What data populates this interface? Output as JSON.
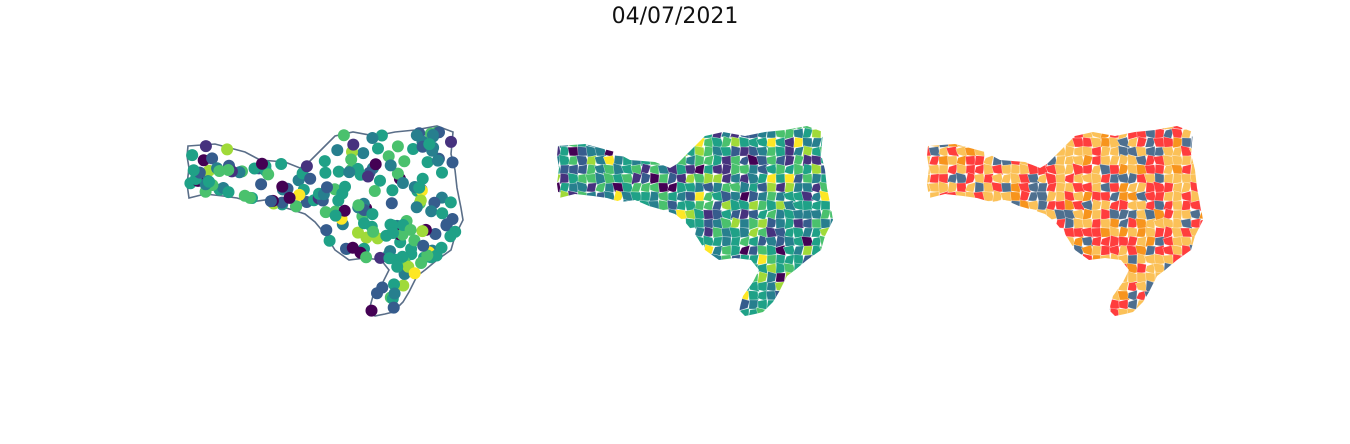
{
  "figure": {
    "title": "04/07/2021"
  },
  "panels": [
    {
      "id": "points",
      "kind": "point-map",
      "colormap": "viridis"
    },
    {
      "id": "choropleth",
      "kind": "choropleth",
      "colormap": "viridis"
    },
    {
      "id": "categories",
      "kind": "categorical-choropleth",
      "category_colors": [
        "#fbc158",
        "#ff3d3d",
        "#4e6f8f",
        "#f7941d"
      ]
    }
  ],
  "palette": {
    "viridis": [
      "#440154",
      "#46327e",
      "#365c8d",
      "#277f8e",
      "#1fa187",
      "#4ac16d",
      "#a0da39",
      "#fde725"
    ],
    "outline": "#5a6e88"
  }
}
